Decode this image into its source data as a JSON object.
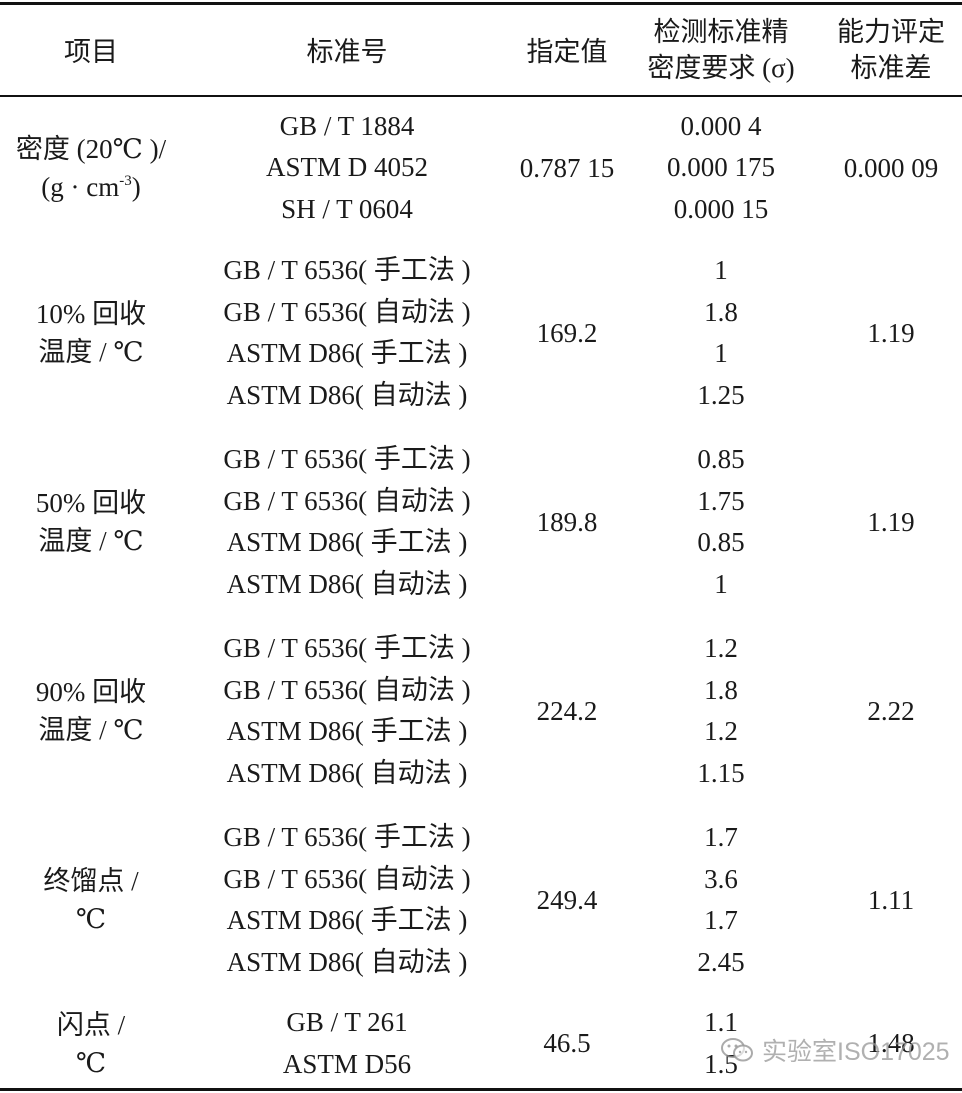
{
  "header": {
    "item": "项目",
    "standard": "标准号",
    "assigned_value": "指定值",
    "precision_lines": [
      "检测标准精",
      "密度要求 (σ)"
    ],
    "eval_sd_lines": [
      "能力评定",
      "标准差"
    ]
  },
  "rows": [
    {
      "item_lines": [
        "密度 (20℃ )/",
        "(g · cm",
        "-3",
        ")"
      ],
      "standards": [
        "GB / T 1884",
        "ASTM D 4052",
        "SH / T 0604"
      ],
      "assigned_value": "0.787 15",
      "precision": [
        "0.000 4",
        "0.000 175",
        "0.000 15"
      ],
      "eval_sd": "0.000 09"
    },
    {
      "item_lines": [
        "10% 回收",
        "温度 / ℃"
      ],
      "standards": [
        "GB / T 6536( 手工法 )",
        "GB / T 6536( 自动法 )",
        "ASTM D86( 手工法 )",
        "ASTM D86( 自动法 )"
      ],
      "assigned_value": "169.2",
      "precision": [
        "1",
        "1.8",
        "1",
        "1.25"
      ],
      "eval_sd": "1.19"
    },
    {
      "item_lines": [
        "50% 回收",
        "温度 / ℃"
      ],
      "standards": [
        "GB / T 6536( 手工法 )",
        "GB / T 6536( 自动法 )",
        "ASTM D86( 手工法 )",
        "ASTM D86( 自动法 )"
      ],
      "assigned_value": "189.8",
      "precision": [
        "0.85",
        "1.75",
        "0.85",
        "1"
      ],
      "eval_sd": "1.19"
    },
    {
      "item_lines": [
        "90% 回收",
        "温度 / ℃"
      ],
      "standards": [
        "GB / T 6536( 手工法 )",
        "GB / T 6536( 自动法 )",
        "ASTM D86( 手工法 )",
        "ASTM D86( 自动法 )"
      ],
      "assigned_value": "224.2",
      "precision": [
        "1.2",
        "1.8",
        "1.2",
        "1.15"
      ],
      "eval_sd": "2.22"
    },
    {
      "item_lines": [
        "终馏点 /",
        "℃"
      ],
      "standards": [
        "GB / T 6536( 手工法 )",
        "GB / T 6536( 自动法 )",
        "ASTM D86( 手工法 )",
        "ASTM D86( 自动法 )"
      ],
      "assigned_value": "249.4",
      "precision": [
        "1.7",
        "3.6",
        "1.7",
        "2.45"
      ],
      "eval_sd": "1.11"
    },
    {
      "item_lines": [
        "闪点 /",
        "℃"
      ],
      "standards": [
        "GB / T 261",
        "ASTM D56"
      ],
      "assigned_value": "46.5",
      "precision": [
        "1.1",
        "1.5"
      ],
      "eval_sd": "1.48"
    }
  ],
  "watermark": {
    "text": "实验室ISO17025",
    "icon": "wechat-icon"
  }
}
